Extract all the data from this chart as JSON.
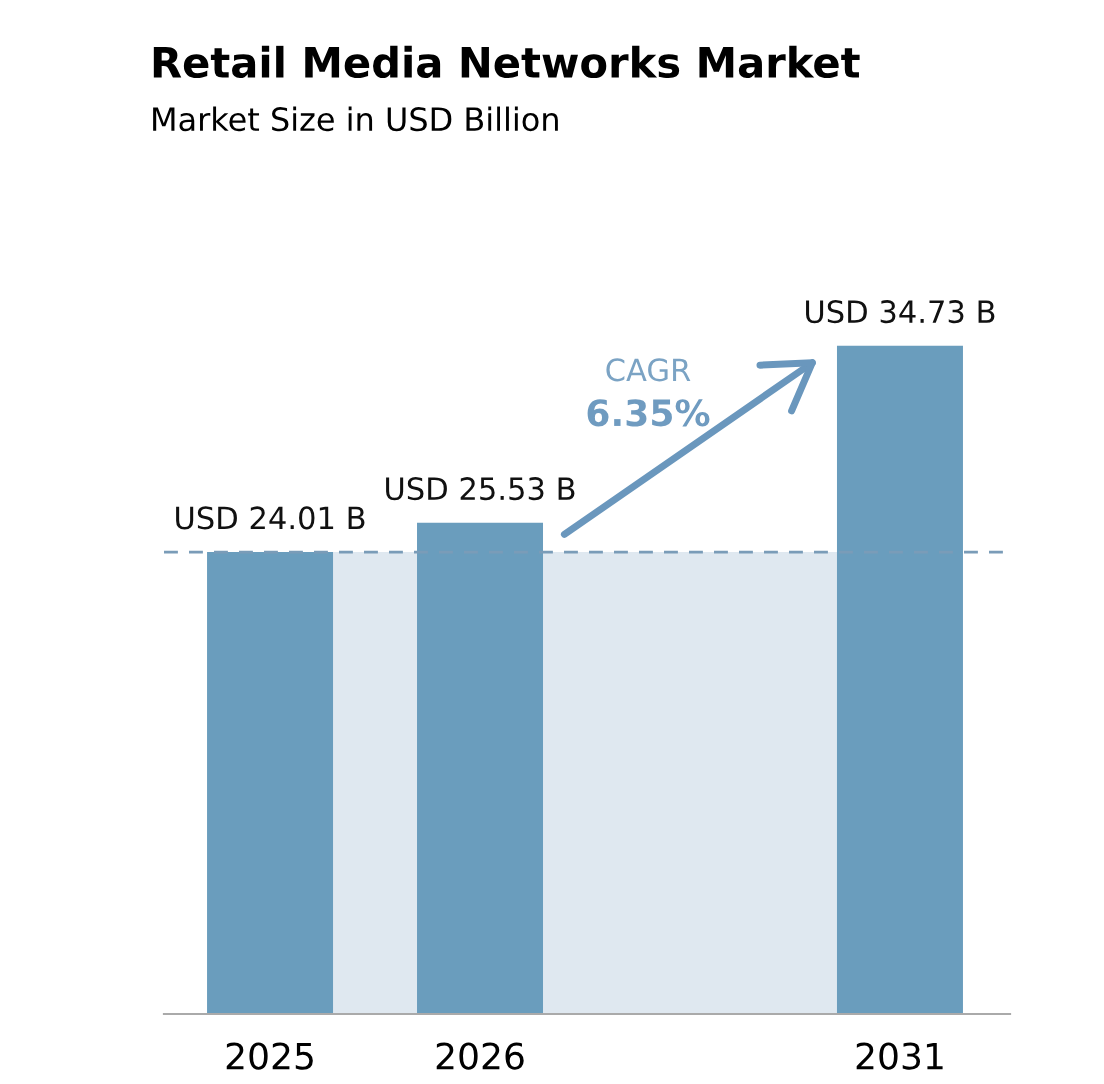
{
  "chart_data": {
    "type": "bar",
    "title": "Retail Media Networks Market",
    "subtitle": "Market Size in USD Billion",
    "categories": [
      "2025",
      "2026",
      null,
      "2031"
    ],
    "values": [
      24.01,
      25.53,
      null,
      34.73
    ],
    "color": "#6a9dbd",
    "value_labels": [
      "USD 24.01 B",
      "USD 25.53 B",
      null,
      "USD 34.73 B"
    ],
    "ref_lines": [
      {
        "axis": "y",
        "value": 24.01,
        "color": "#7a9cb8",
        "line_style": "dashed"
      }
    ],
    "bands": [
      {
        "axis": "y",
        "from": 0,
        "to": 24.01,
        "color": "#dfe8f0"
      }
    ],
    "annotations": [
      "CAGR",
      "6.35%"
    ],
    "grid": false,
    "legend": false,
    "tick_labels": "x"
  }
}
